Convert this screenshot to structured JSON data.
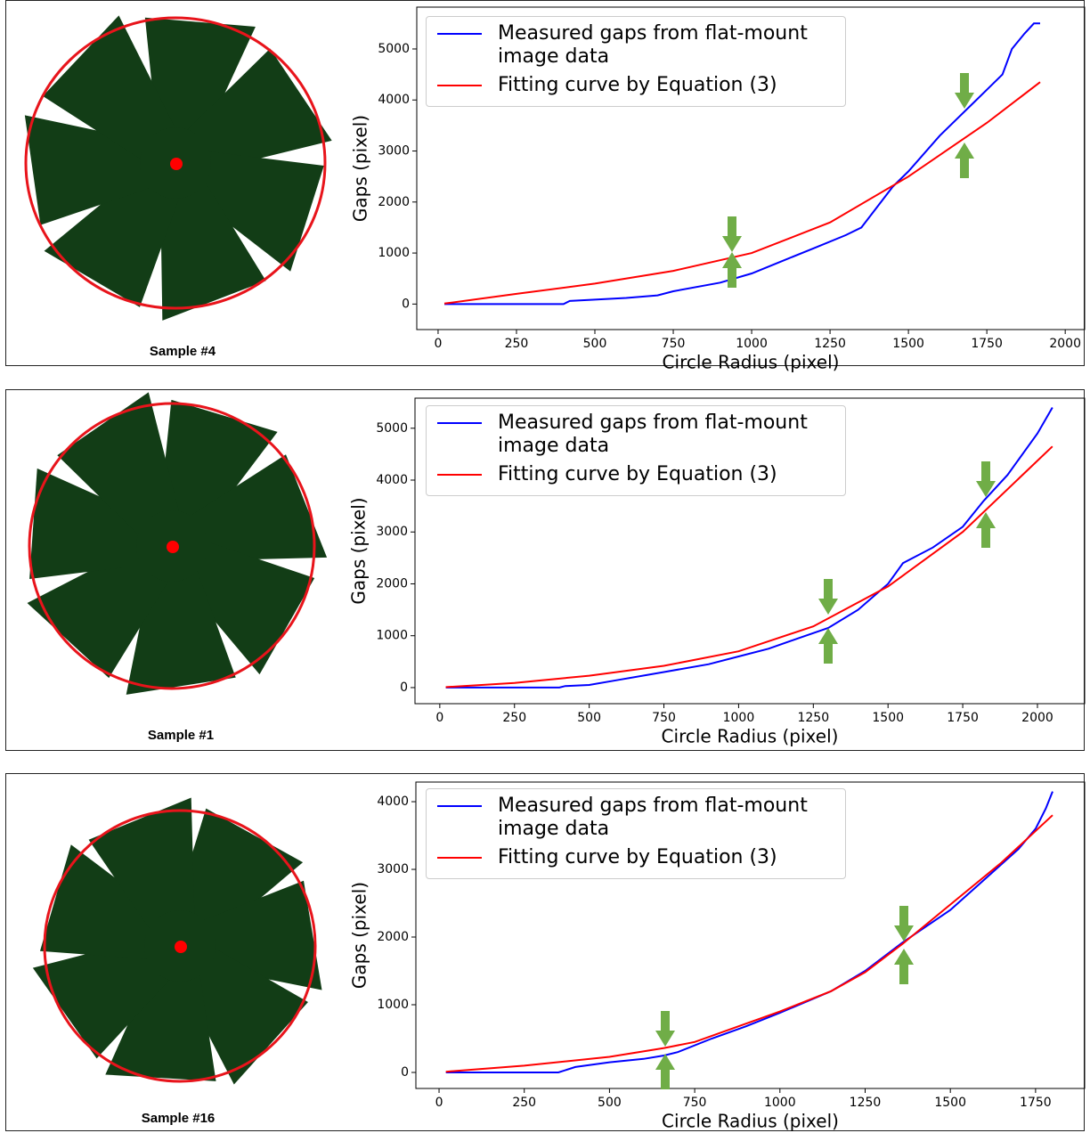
{
  "chart_data": [
    {
      "type": "line",
      "caption": "Sample #4",
      "x_label": "Circle Radius (pixel)",
      "y_label": "Gaps (pixel)",
      "xlim": [
        -68,
        2062
      ],
      "ylim": [
        -500,
        5820
      ],
      "xticks": [
        0,
        250,
        500,
        750,
        1000,
        1250,
        1500,
        1750,
        2000
      ],
      "yticks": [
        0,
        1000,
        2000,
        3000,
        4000,
        5000
      ],
      "series": [
        {
          "name": "Measured gaps from flat-mount image data",
          "color": "#0000ff",
          "x": [
            20,
            400,
            420,
            600,
            700,
            750,
            900,
            1000,
            1100,
            1200,
            1300,
            1350,
            1400,
            1450,
            1500,
            1600,
            1700,
            1750,
            1800,
            1830,
            1870,
            1900,
            1920
          ],
          "values": [
            0,
            0,
            60,
            120,
            170,
            250,
            420,
            600,
            850,
            1100,
            1350,
            1500,
            1900,
            2300,
            2600,
            3300,
            3900,
            4200,
            4500,
            5000,
            5300,
            5500,
            5500
          ]
        },
        {
          "name": "Fitting curve by Equation (3)",
          "color": "#ff0000",
          "x": [
            20,
            250,
            500,
            750,
            1000,
            1250,
            1500,
            1750,
            1920
          ],
          "values": [
            10,
            200,
            400,
            650,
            1000,
            1600,
            2500,
            3550,
            4350
          ]
        }
      ]
    },
    {
      "type": "line",
      "caption": "Sample #1",
      "x_label": "Circle Radius (pixel)",
      "y_label": "Gaps (pixel)",
      "xlim": [
        -83,
        2158
      ],
      "ylim": [
        -310,
        5580
      ],
      "xticks": [
        0,
        250,
        500,
        750,
        1000,
        1250,
        1500,
        1750,
        2000
      ],
      "yticks": [
        0,
        1000,
        2000,
        3000,
        4000,
        5000
      ],
      "series": [
        {
          "name": "Measured gaps from flat-mount image data",
          "color": "#0000ff",
          "x": [
            20,
            400,
            420,
            500,
            600,
            750,
            900,
            1000,
            1100,
            1200,
            1300,
            1400,
            1450,
            1500,
            1550,
            1650,
            1750,
            1820,
            1900,
            2000,
            2050
          ],
          "values": [
            0,
            0,
            30,
            50,
            150,
            300,
            450,
            600,
            750,
            950,
            1150,
            1500,
            1750,
            2000,
            2400,
            2700,
            3100,
            3600,
            4100,
            4900,
            5400
          ]
        },
        {
          "name": "Fitting curve by Equation (3)",
          "color": "#ff0000",
          "x": [
            20,
            250,
            500,
            750,
            1000,
            1250,
            1500,
            1750,
            2050
          ],
          "values": [
            10,
            90,
            230,
            420,
            700,
            1180,
            1950,
            3000,
            4650
          ]
        }
      ]
    },
    {
      "type": "line",
      "caption": "Sample #16",
      "x_label": "Circle Radius (pixel)",
      "y_label": "Gaps (pixel)",
      "xlim": [
        -68,
        1894
      ],
      "ylim": [
        -237,
        4290
      ],
      "xticks": [
        0,
        250,
        500,
        750,
        1000,
        1250,
        1500,
        1750
      ],
      "yticks": [
        0,
        1000,
        2000,
        3000,
        4000
      ],
      "series": [
        {
          "name": "Measured gaps from flat-mount image data",
          "color": "#0000ff",
          "x": [
            20,
            350,
            400,
            500,
            600,
            660,
            700,
            800,
            900,
            1000,
            1150,
            1250,
            1360,
            1500,
            1600,
            1700,
            1750,
            1780,
            1800
          ],
          "values": [
            0,
            0,
            80,
            150,
            200,
            250,
            300,
            500,
            680,
            880,
            1200,
            1500,
            1920,
            2400,
            2850,
            3300,
            3600,
            3900,
            4150
          ]
        },
        {
          "name": "Fitting curve by Equation (3)",
          "color": "#ff0000",
          "x": [
            20,
            250,
            500,
            660,
            750,
            1000,
            1150,
            1250,
            1360,
            1500,
            1650,
            1800
          ],
          "values": [
            10,
            100,
            230,
            360,
            450,
            900,
            1200,
            1480,
            1900,
            2480,
            3100,
            3800
          ]
        }
      ]
    }
  ]
}
